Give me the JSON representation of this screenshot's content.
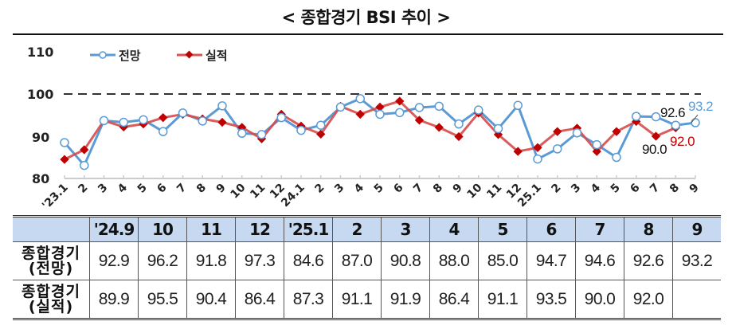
{
  "title": "< 종합경기 BSI 추이 >",
  "chart_data": {
    "type": "line",
    "title": "< 종합경기 BSI 추이 >",
    "xlabel": "",
    "ylabel": "",
    "ylim": [
      80,
      110
    ],
    "yticks": [
      80,
      90,
      100,
      110
    ],
    "reference_line": {
      "value": 100,
      "style": "dashed"
    },
    "grid": false,
    "legend_position": "top-left",
    "categories": [
      "'23.1",
      "2",
      "3",
      "4",
      "5",
      "6",
      "7",
      "8",
      "9",
      "10",
      "11",
      "12",
      "24.1",
      "2",
      "3",
      "4",
      "5",
      "6",
      "7",
      "8",
      "9",
      "10",
      "11",
      "12",
      "25.1",
      "2",
      "3",
      "4",
      "5",
      "6",
      "7",
      "8",
      "9"
    ],
    "series": [
      {
        "name": "전망",
        "color": "#5b9bd5",
        "marker": "open-circle",
        "values": [
          88.5,
          83.1,
          93.7,
          93.3,
          93.9,
          91.1,
          95.5,
          93.6,
          97.2,
          90.7,
          90.4,
          94.4,
          91.4,
          92.6,
          96.9,
          98.9,
          95.2,
          95.6,
          96.8,
          97.1,
          92.9,
          96.2,
          91.8,
          97.3,
          84.6,
          87.0,
          90.8,
          88.0,
          85.0,
          94.7,
          94.6,
          92.6,
          93.2
        ]
      },
      {
        "name": "실적",
        "color": "#c00000",
        "marker": "filled-diamond",
        "values": [
          84.5,
          86.8,
          93.7,
          92.2,
          92.9,
          94.4,
          95.2,
          94.1,
          93.3,
          92.1,
          89.4,
          95.2,
          92.4,
          90.5,
          97.1,
          95.2,
          96.9,
          98.3,
          93.8,
          92.1,
          89.9,
          95.5,
          90.4,
          86.4,
          87.3,
          91.1,
          91.9,
          86.4,
          91.1,
          93.5,
          90.0,
          92.0,
          null
        ]
      }
    ],
    "annotations": [
      {
        "text": "92.6",
        "color": "#111111",
        "near": "전망 25.8"
      },
      {
        "text": "93.2",
        "color": "#5b9bd5",
        "near": "전망 25.9"
      },
      {
        "text": "90.0",
        "color": "#111111",
        "near": "실적 25.7"
      },
      {
        "text": "92.0",
        "color": "#c00000",
        "near": "실적 25.8"
      }
    ]
  },
  "legend": {
    "forecast": "전망",
    "actual": "실적"
  },
  "axis": {
    "y": [
      "110",
      "100",
      "90",
      "80"
    ]
  },
  "annotations": {
    "f_prev": "92.6",
    "f_last": "93.2",
    "a_prev": "90.0",
    "a_last": "92.0"
  },
  "table": {
    "headers": [
      "",
      "'24.9",
      "10",
      "11",
      "12",
      "'25.1",
      "2",
      "3",
      "4",
      "5",
      "6",
      "7",
      "8",
      "9"
    ],
    "rows": [
      {
        "label_line1": "종합경기",
        "label_line2": "(전망)",
        "values": [
          "92.9",
          "96.2",
          "91.8",
          "97.3",
          "84.6",
          "87.0",
          "90.8",
          "88.0",
          "85.0",
          "94.7",
          "94.6",
          "92.6",
          "93.2"
        ]
      },
      {
        "label_line1": "종합경기",
        "label_line2": "(실적)",
        "values": [
          "89.9",
          "95.5",
          "90.4",
          "86.4",
          "87.3",
          "91.1",
          "91.9",
          "86.4",
          "91.1",
          "93.5",
          "90.0",
          "92.0",
          ""
        ]
      }
    ]
  }
}
